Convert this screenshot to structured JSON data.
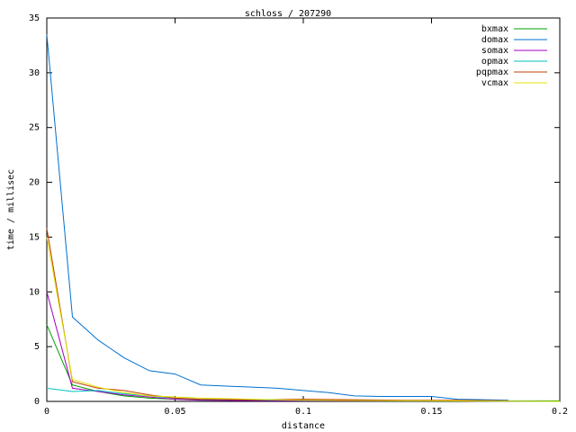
{
  "chart_data": {
    "type": "line",
    "title": "schloss / 207290",
    "x_label": "distance",
    "y_label": "time / millisec",
    "xlim": [
      0,
      0.2
    ],
    "xticks": [
      0,
      0.05,
      0.1,
      0.15,
      0.2
    ],
    "ylim": [
      0,
      35
    ],
    "yticks": [
      0,
      5,
      10,
      15,
      20,
      25,
      30,
      35
    ],
    "legend": "top-right",
    "series": [
      {
        "name": "bxmax",
        "color": "#00a000",
        "x": [
          0,
          0.01,
          0.02,
          0.03,
          0.04,
          0.05,
          0.06,
          0.08,
          0.1,
          0.12,
          0.14,
          0.16,
          0.18,
          0.2
        ],
        "values": [
          7,
          1.5,
          0.9,
          0.5,
          0.3,
          0.2,
          0.15,
          0.1,
          0.1,
          0.1,
          0.05,
          0.05,
          0.05,
          0.05
        ]
      },
      {
        "name": "domax",
        "color": "#0070d0",
        "x": [
          0,
          0.01,
          0.02,
          0.03,
          0.04,
          0.05,
          0.06,
          0.07,
          0.08,
          0.09,
          0.1,
          0.11,
          0.12,
          0.13,
          0.14,
          0.15,
          0.16,
          0.17,
          0.18
        ],
        "values": [
          33.5,
          7.7,
          5.6,
          4,
          2.8,
          2.5,
          1.5,
          1.4,
          1.3,
          1.2,
          1.0,
          0.8,
          0.5,
          0.45,
          0.45,
          0.45,
          0.2,
          0.15,
          0.1
        ]
      },
      {
        "name": "somax",
        "color": "#a000c0",
        "x": [
          0,
          0.01,
          0.02,
          0.03,
          0.04,
          0.05,
          0.06,
          0.1,
          0.15,
          0.2
        ],
        "values": [
          10,
          1.2,
          0.9,
          0.6,
          0.4,
          0.2,
          0.1,
          0.05,
          0.05,
          0
        ]
      },
      {
        "name": "opmax",
        "color": "#00c0c0",
        "x": [
          0,
          0.01,
          0.02,
          0.03,
          0.04,
          0.05,
          0.06,
          0.1,
          0.15,
          0.2
        ],
        "values": [
          1.2,
          0.9,
          1.0,
          0.7,
          0.5,
          0.3,
          0.2,
          0.1,
          0.05,
          0
        ]
      },
      {
        "name": "pqpmax",
        "color": "#c04000",
        "x": [
          0,
          0.01,
          0.02,
          0.03,
          0.04,
          0.05,
          0.06,
          0.08,
          0.1,
          0.12,
          0.14,
          0.16,
          0.18
        ],
        "values": [
          15.8,
          1.8,
          1.2,
          1.0,
          0.6,
          0.3,
          0.2,
          0.15,
          0.2,
          0.15,
          0.1,
          0.1,
          0.05
        ]
      },
      {
        "name": "vcmax",
        "color": "#e0e000",
        "x": [
          0,
          0.01,
          0.02,
          0.03,
          0.04,
          0.05,
          0.06,
          0.08,
          0.1,
          0.15,
          0.2
        ],
        "values": [
          15,
          2,
          1.3,
          0.8,
          0.5,
          0.4,
          0.3,
          0.2,
          0.1,
          0.05,
          0
        ]
      }
    ]
  }
}
